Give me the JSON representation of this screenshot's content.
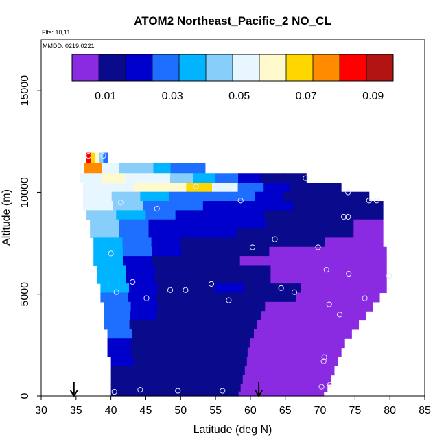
{
  "chart_data": {
    "type": "heatmap",
    "title": "ATOM2 Northeast_Pacific_2 NO_CL",
    "flights_label": "Flts: 10,11",
    "dates_label": "MMDD: 0219,0221",
    "xlabel": "Latitude (deg N)",
    "ylabel": "Altitude (m)",
    "xlim": [
      30,
      85
    ],
    "ylim": [
      0,
      17500
    ],
    "x_ticks": [
      "30",
      "35",
      "40",
      "45",
      "50",
      "55",
      "60",
      "65",
      "70",
      "75",
      "80",
      "85"
    ],
    "y_ticks": [
      "0",
      "5000",
      "10000",
      "15000"
    ],
    "y_tick_values": [
      0,
      5000,
      10000,
      15000
    ],
    "colorbar": {
      "range": [
        0,
        0.096
      ],
      "tick_values": [
        0.01,
        0.03,
        0.05,
        0.07,
        0.09
      ],
      "tick_labels": [
        "0.01",
        "0.03",
        "0.05",
        "0.07",
        "0.09"
      ],
      "colors": [
        "#8a2be2",
        "#0a0a8c",
        "#0000cd",
        "#1e6fff",
        "#00b4ff",
        "#87cefa",
        "#e8f6ff",
        "#fffacd",
        "#ffd700",
        "#ff8c00",
        "#ff0000",
        "#b21414"
      ]
    },
    "grid": false,
    "arrows_latitude": [
      34.7,
      61.2
    ],
    "profile_rows": [
      {
        "alt": 11700,
        "lat_start": 36.5,
        "lat_end": 39.5,
        "values": [
          0.085,
          0.07,
          0.06,
          0.04,
          0.03
        ]
      },
      {
        "alt": 11200,
        "lat_start": 36.2,
        "lat_end": 53.5,
        "values": [
          0.075,
          0.055,
          0.045,
          0.04,
          0.035,
          0.03,
          0.025
        ]
      },
      {
        "alt": 10700,
        "lat_start": 35.5,
        "lat_end": 68.0,
        "values": [
          0.055,
          0.056,
          0.055,
          0.05,
          0.045,
          0.035,
          0.03,
          0.02,
          0.012,
          0.01
        ]
      },
      {
        "alt": 10250,
        "lat_start": 36.0,
        "lat_end": 73.0,
        "values": [
          0.05,
          0.052,
          0.058,
          0.062,
          0.066,
          0.048,
          0.03,
          0.02,
          0.012,
          0.01
        ]
      },
      {
        "alt": 9800,
        "lat_start": 36.0,
        "lat_end": 77.0,
        "values": [
          0.05,
          0.045,
          0.035,
          0.03,
          0.03,
          0.028,
          0.022,
          0.015,
          0.01,
          0.008
        ]
      },
      {
        "alt": 9350,
        "lat_start": 36.0,
        "lat_end": 79.0,
        "values": [
          0.048,
          0.04,
          0.03,
          0.025,
          0.022,
          0.02,
          0.016,
          0.012,
          0.009,
          0.008
        ]
      },
      {
        "alt": 8900,
        "lat_start": 36.5,
        "lat_end": 79.0,
        "values": [
          0.045,
          0.035,
          0.026,
          0.022,
          0.02,
          0.018,
          0.015,
          0.011,
          0.009,
          0.008
        ]
      },
      {
        "alt": 8450,
        "lat_start": 37.0,
        "lat_end": 79.0,
        "values": [
          0.042,
          0.03,
          0.022,
          0.02,
          0.018,
          0.016,
          0.013,
          0.01,
          0.009,
          0.007
        ]
      },
      {
        "alt": 8000,
        "lat_start": 37.0,
        "lat_end": 79.0,
        "values": [
          0.04,
          0.028,
          0.02,
          0.018,
          0.016,
          0.014,
          0.011,
          0.009,
          0.008,
          0.007
        ]
      },
      {
        "alt": 7550,
        "lat_start": 37.5,
        "lat_end": 79.0,
        "values": [
          0.038,
          0.026,
          0.018,
          0.015,
          0.013,
          0.011,
          0.009,
          0.008,
          0.007,
          0.006
        ]
      },
      {
        "alt": 7100,
        "lat_start": 37.5,
        "lat_end": 79.5,
        "values": [
          0.036,
          0.024,
          0.016,
          0.013,
          0.011,
          0.009,
          0.007,
          0.006,
          0.006,
          0.005
        ]
      },
      {
        "alt": 6650,
        "lat_start": 37.5,
        "lat_end": 79.5,
        "values": [
          0.035,
          0.022,
          0.014,
          0.011,
          0.009,
          0.007,
          0.006,
          0.005,
          0.005,
          0.005
        ]
      },
      {
        "alt": 6200,
        "lat_start": 38.0,
        "lat_end": 79.5,
        "values": [
          0.034,
          0.02,
          0.013,
          0.01,
          0.01,
          0.008,
          0.006,
          0.005,
          0.004,
          0.004
        ]
      },
      {
        "alt": 5750,
        "lat_start": 38.0,
        "lat_end": 79.5,
        "values": [
          0.033,
          0.019,
          0.012,
          0.011,
          0.012,
          0.01,
          0.007,
          0.005,
          0.004,
          0.004
        ]
      },
      {
        "alt": 5300,
        "lat_start": 38.5,
        "lat_end": 79.5,
        "values": [
          0.032,
          0.018,
          0.013,
          0.014,
          0.02,
          0.015,
          0.009,
          0.006,
          0.004,
          0.004
        ]
      },
      {
        "alt": 4850,
        "lat_start": 38.5,
        "lat_end": 78.5,
        "values": [
          0.031,
          0.018,
          0.012,
          0.012,
          0.012,
          0.011,
          0.008,
          0.005,
          0.004,
          0.004
        ]
      },
      {
        "alt": 4400,
        "lat_start": 39.0,
        "lat_end": 77.5,
        "values": [
          0.03,
          0.017,
          0.012,
          0.011,
          0.01,
          0.009,
          0.007,
          0.005,
          0.004,
          0.004
        ]
      },
      {
        "alt": 3950,
        "lat_start": 39.0,
        "lat_end": 76.5,
        "values": [
          0.028,
          0.016,
          0.011,
          0.01,
          0.009,
          0.008,
          0.006,
          0.005,
          0.004,
          0.004
        ]
      },
      {
        "alt": 3500,
        "lat_start": 39.0,
        "lat_end": 75.5,
        "values": [
          0.026,
          0.015,
          0.011,
          0.01,
          0.009,
          0.008,
          0.006,
          0.005,
          0.004,
          0.004
        ]
      },
      {
        "alt": 3050,
        "lat_start": 39.5,
        "lat_end": 74.5,
        "values": [
          0.024,
          0.014,
          0.011,
          0.01,
          0.009,
          0.008,
          0.006,
          0.005,
          0.004,
          0.004
        ]
      },
      {
        "alt": 2600,
        "lat_start": 39.5,
        "lat_end": 73.5,
        "values": [
          0.022,
          0.013,
          0.011,
          0.01,
          0.009,
          0.008,
          0.006,
          0.005,
          0.004,
          0.004
        ]
      },
      {
        "alt": 2150,
        "lat_start": 39.5,
        "lat_end": 73.0,
        "values": [
          0.02,
          0.013,
          0.011,
          0.01,
          0.009,
          0.008,
          0.006,
          0.005,
          0.004,
          0.004
        ]
      },
      {
        "alt": 1700,
        "lat_start": 40.0,
        "lat_end": 72.5,
        "values": [
          0.016,
          0.012,
          0.011,
          0.01,
          0.009,
          0.008,
          0.006,
          0.005,
          0.004,
          0.004
        ]
      },
      {
        "alt": 1250,
        "lat_start": 40.0,
        "lat_end": 72.0,
        "values": [
          0.014,
          0.012,
          0.011,
          0.01,
          0.009,
          0.008,
          0.006,
          0.005,
          0.004,
          0.004
        ]
      },
      {
        "alt": 800,
        "lat_start": 40.0,
        "lat_end": 71.5,
        "values": [
          0.013,
          0.012,
          0.011,
          0.011,
          0.009,
          0.008,
          0.006,
          0.005,
          0.004,
          0.004
        ]
      },
      {
        "alt": 350,
        "lat_start": 40.0,
        "lat_end": 71.0,
        "values": [
          0.013,
          0.012,
          0.012,
          0.011,
          0.01,
          0.008,
          0.006,
          0.005,
          0.004,
          0.004
        ]
      },
      {
        "alt": 80,
        "lat_start": 40.0,
        "lat_end": 70.5,
        "values": [
          0.013,
          0.012,
          0.012,
          0.011,
          0.01,
          0.008,
          0.006,
          0.005,
          0.004,
          0.004
        ]
      }
    ],
    "points": [
      {
        "x": 36.8,
        "y": 11800
      },
      {
        "x": 38.9,
        "y": 11800
      },
      {
        "x": 41.4,
        "y": 9500
      },
      {
        "x": 46.6,
        "y": 9200
      },
      {
        "x": 52.2,
        "y": 10300
      },
      {
        "x": 58.6,
        "y": 9600
      },
      {
        "x": 67.9,
        "y": 10700
      },
      {
        "x": 74.0,
        "y": 10000
      },
      {
        "x": 77.0,
        "y": 9600
      },
      {
        "x": 78.1,
        "y": 9600
      },
      {
        "x": 73.4,
        "y": 8800
      },
      {
        "x": 74.0,
        "y": 8800
      },
      {
        "x": 63.5,
        "y": 7700
      },
      {
        "x": 60.3,
        "y": 7300
      },
      {
        "x": 69.7,
        "y": 7300
      },
      {
        "x": 40.0,
        "y": 7000
      },
      {
        "x": 70.9,
        "y": 6200
      },
      {
        "x": 74.1,
        "y": 6000
      },
      {
        "x": 79.9,
        "y": 5900
      },
      {
        "x": 43.1,
        "y": 5600
      },
      {
        "x": 54.4,
        "y": 5500
      },
      {
        "x": 64.4,
        "y": 5300
      },
      {
        "x": 66.3,
        "y": 5100
      },
      {
        "x": 50.7,
        "y": 5200
      },
      {
        "x": 48.5,
        "y": 5200
      },
      {
        "x": 40.8,
        "y": 5100
      },
      {
        "x": 45.1,
        "y": 4800
      },
      {
        "x": 56.9,
        "y": 4700
      },
      {
        "x": 76.4,
        "y": 4800
      },
      {
        "x": 71.3,
        "y": 4500
      },
      {
        "x": 72.8,
        "y": 4000
      },
      {
        "x": 70.6,
        "y": 1900
      },
      {
        "x": 70.5,
        "y": 1700
      },
      {
        "x": 40.5,
        "y": 200
      },
      {
        "x": 44.2,
        "y": 300
      },
      {
        "x": 49.6,
        "y": 250
      },
      {
        "x": 56.0,
        "y": 250
      },
      {
        "x": 70.2,
        "y": 450
      },
      {
        "x": 71.4,
        "y": 550
      }
    ]
  }
}
